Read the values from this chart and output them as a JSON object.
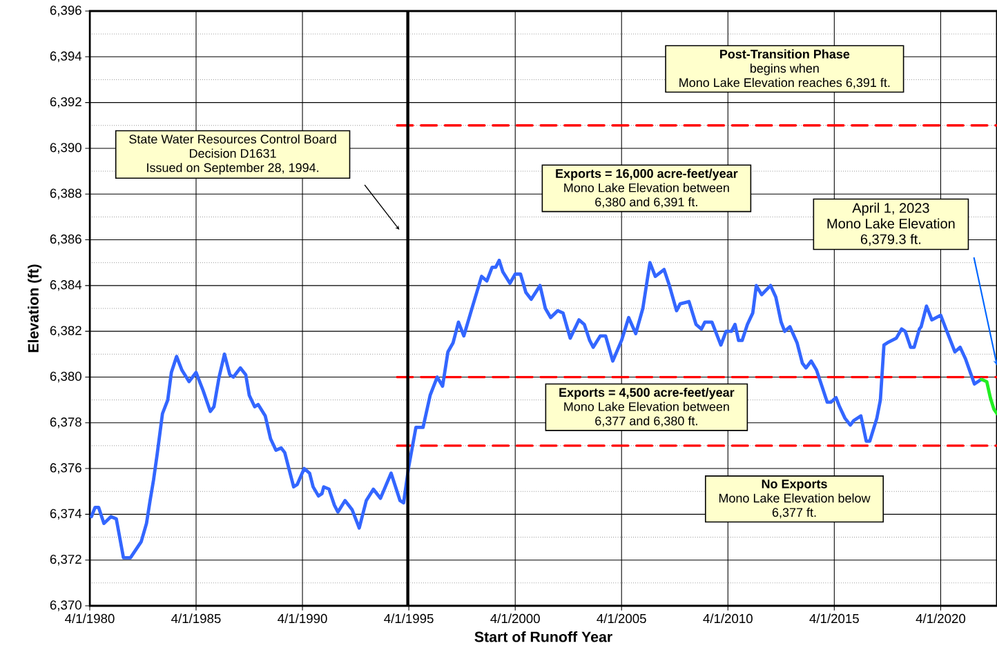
{
  "chart_data": {
    "type": "line",
    "xlabel": "Start of Runoff Year",
    "ylabel": "Elevation (ft)",
    "xlim": [
      "1980-04-01",
      "2022-11-24"
    ],
    "ylim": [
      6370,
      6396
    ],
    "xticks": [
      {
        "value": "1980-04-01",
        "label": "4/1/1980"
      },
      {
        "value": "1985-04-01",
        "label": "4/1/1985"
      },
      {
        "value": "1990-04-01",
        "label": "4/1/1990"
      },
      {
        "value": "1995-04-01",
        "label": "4/1/1995"
      },
      {
        "value": "2000-04-01",
        "label": "4/1/2000"
      },
      {
        "value": "2005-04-01",
        "label": "4/1/2005"
      },
      {
        "value": "2010-04-01",
        "label": "4/1/2010"
      },
      {
        "value": "2015-04-01",
        "label": "4/1/2015"
      },
      {
        "value": "2020-04-01",
        "label": "4/1/2020"
      }
    ],
    "yticks": [
      {
        "value": 6370,
        "label": "6,370"
      },
      {
        "value": 6372,
        "label": "6,372"
      },
      {
        "value": 6374,
        "label": "6,374"
      },
      {
        "value": 6376,
        "label": "6,376"
      },
      {
        "value": 6378,
        "label": "6,378"
      },
      {
        "value": 6380,
        "label": "6,380"
      },
      {
        "value": 6382,
        "label": "6,382"
      },
      {
        "value": 6384,
        "label": "6,384"
      },
      {
        "value": 6386,
        "label": "6,386"
      },
      {
        "value": 6388,
        "label": "6,388"
      },
      {
        "value": 6390,
        "label": "6,390"
      },
      {
        "value": 6392,
        "label": "6,392"
      },
      {
        "value": 6394,
        "label": "6,394"
      },
      {
        "value": 6396,
        "label": "6,396"
      }
    ],
    "grid": true,
    "line_style": "solid",
    "series": [
      {
        "color": "#ff0000",
        "line_style": "dashed",
        "x": [
          "1994-09-12",
          "2022-11-24"
        ],
        "values": [
          6391,
          6391
        ]
      },
      {
        "color": "#ff0000",
        "line_style": "dashed",
        "x": [
          "1994-09-12",
          "2022-11-24"
        ],
        "values": [
          6380,
          6380
        ]
      },
      {
        "color": "#ff0000",
        "line_style": "dashed",
        "x": [
          "1994-09-12",
          "2022-11-24"
        ],
        "values": [
          6377,
          6377
        ]
      },
      {
        "color": "#3366ff",
        "x": [
          "1980-05",
          "1980-07",
          "1980-09",
          "1980-12",
          "1981-04",
          "1981-07",
          "1981-11",
          "1982-03",
          "1982-09",
          "1982-12",
          "1983-02",
          "1983-04",
          "1983-06",
          "1983-09",
          "1983-12",
          "1984-02",
          "1984-05",
          "1984-08",
          "1984-12",
          "1985-04",
          "1985-08",
          "1985-12",
          "1986-02",
          "1986-05",
          "1986-08",
          "1986-11",
          "1987-01",
          "1987-05",
          "1987-08",
          "1987-10",
          "1988-01",
          "1988-03",
          "1988-07",
          "1988-10",
          "1989-01",
          "1989-04",
          "1989-06",
          "1989-11",
          "1990-01",
          "1990-05",
          "1990-08",
          "1990-10",
          "1991-01",
          "1991-03",
          "1991-04",
          "1991-07",
          "1991-10",
          "1991-12",
          "1992-04",
          "1992-08",
          "1992-12",
          "1993-04",
          "1993-08",
          "1993-12",
          "1994-06",
          "1994-11",
          "1995-01",
          "1995-04",
          "1995-08",
          "1995-12",
          "1996-04",
          "1996-08",
          "1996-11",
          "1997-02",
          "1997-05",
          "1997-08",
          "1997-11",
          "1998-04",
          "1998-09",
          "1998-12",
          "1999-03",
          "1999-05",
          "1999-07",
          "1999-09",
          "2000-01",
          "2000-04",
          "2000-07",
          "2000-10",
          "2001-01",
          "2001-06",
          "2001-09",
          "2001-12",
          "2002-04",
          "2002-07",
          "2002-11",
          "2003-04",
          "2003-07",
          "2003-10",
          "2003-12",
          "2004-04",
          "2004-07",
          "2004-11",
          "2005-04",
          "2005-08",
          "2005-12",
          "2006-04",
          "2006-08",
          "2006-11",
          "2007-04",
          "2007-07",
          "2007-11",
          "2008-01",
          "2008-06",
          "2008-10",
          "2009-01",
          "2009-03",
          "2009-07",
          "2009-12",
          "2010-03",
          "2010-06",
          "2010-08",
          "2010-10",
          "2010-12",
          "2011-03",
          "2011-06",
          "2011-08",
          "2011-11",
          "2012-04",
          "2012-07",
          "2012-10",
          "2012-12",
          "2013-03",
          "2013-07",
          "2013-10",
          "2013-12",
          "2014-03",
          "2014-06",
          "2014-09",
          "2014-12",
          "2015-02",
          "2015-05",
          "2015-07",
          "2015-10",
          "2016-01",
          "2016-03",
          "2016-07",
          "2016-10",
          "2016-12",
          "2017-04",
          "2017-06",
          "2017-08",
          "2017-10",
          "2018-03",
          "2018-06",
          "2018-08",
          "2018-11",
          "2019-01",
          "2019-04",
          "2019-05",
          "2019-08",
          "2019-11",
          "2020-04",
          "2020-07",
          "2020-12",
          "2021-03",
          "2021-06",
          "2021-11",
          "2022-03"
        ],
        "values": [
          6373.9,
          6374.3,
          6374.3,
          6373.6,
          6373.9,
          6373.8,
          6372.1,
          6372.1,
          6372.8,
          6373.6,
          6374.6,
          6375.5,
          6376.6,
          6378.4,
          6379.0,
          6380.2,
          6380.9,
          6380.3,
          6379.8,
          6380.2,
          6379.4,
          6378.5,
          6378.7,
          6380.0,
          6381.0,
          6380.1,
          6380.0,
          6380.4,
          6380.1,
          6379.2,
          6378.7,
          6378.8,
          6378.3,
          6377.3,
          6376.8,
          6376.9,
          6376.7,
          6375.2,
          6375.3,
          6376.0,
          6375.8,
          6375.2,
          6374.8,
          6374.9,
          6375.2,
          6375.1,
          6374.4,
          6374.1,
          6374.6,
          6374.2,
          6373.4,
          6374.6,
          6375.1,
          6374.7,
          6375.8,
          6374.6,
          6374.5,
          6376.1,
          6377.8,
          6377.8,
          6379.2,
          6380.0,
          6379.6,
          6381.1,
          6381.5,
          6382.4,
          6381.8,
          6383.1,
          6384.4,
          6384.2,
          6384.8,
          6384.8,
          6385.1,
          6384.6,
          6384.1,
          6384.5,
          6384.5,
          6383.7,
          6383.4,
          6384.0,
          6383.0,
          6382.6,
          6382.9,
          6382.8,
          6381.7,
          6382.5,
          6382.3,
          6381.6,
          6381.3,
          6381.8,
          6381.8,
          6380.7,
          6381.6,
          6382.6,
          6381.9,
          6383.0,
          6385.0,
          6384.4,
          6384.7,
          6384.0,
          6382.9,
          6383.2,
          6383.3,
          6382.3,
          6382.1,
          6382.4,
          6382.4,
          6381.4,
          6382.0,
          6382.0,
          6382.3,
          6381.6,
          6381.6,
          6382.3,
          6382.8,
          6384.0,
          6383.6,
          6384.0,
          6383.5,
          6382.4,
          6382.0,
          6382.2,
          6381.5,
          6380.6,
          6380.4,
          6380.7,
          6380.3,
          6379.6,
          6378.9,
          6378.9,
          6379.1,
          6378.7,
          6378.2,
          6377.9,
          6378.1,
          6378.3,
          6377.2,
          6377.2,
          6378.2,
          6379.0,
          6381.4,
          6381.5,
          6381.7,
          6382.1,
          6382.0,
          6381.3,
          6381.3,
          6382.1,
          6382.2,
          6383.1,
          6382.5,
          6382.7,
          6382.1,
          6381.1,
          6381.3,
          6380.8,
          6379.7,
          6379.9
        ]
      },
      {
        "color": "#22ee22",
        "x": [
          "2022-03",
          "2022-06",
          "2022-08",
          "2022-10",
          "2022-11-24"
        ],
        "values": [
          6379.9,
          6379.8,
          6379.1,
          6378.6,
          6378.4
        ]
      }
    ],
    "ref_lines": [
      {
        "axis": "x",
        "value": "1995-03-14",
        "color": "#000000"
      }
    ],
    "annotations": [
      "Post-Transition Phase",
      "begins when",
      "Mono Lake Elevation reaches 6,391 ft.",
      "State Water Resources Control Board",
      "Decision D1631",
      "Issued on September 28, 1994.",
      "Exports = 16,000 acre-feet/year",
      "Mono Lake Elevation between",
      "6,380 and 6,391 ft.",
      "April 1, 2023",
      "Mono Lake Elevation",
      "6,379.3 ft.",
      "Exports = 4,500 acre-feet/year",
      "Mono Lake Elevation between",
      "6,377 and 6,380 ft.",
      "No Exports",
      "Mono Lake Elevation below",
      "6,377 ft."
    ]
  }
}
